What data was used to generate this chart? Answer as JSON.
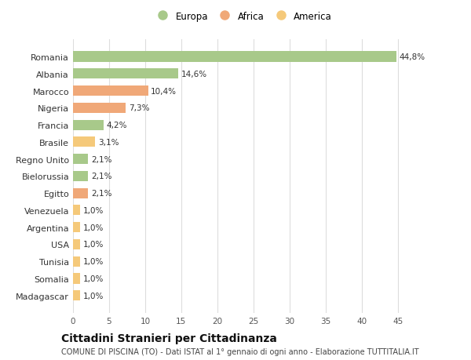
{
  "categories": [
    "Madagascar",
    "Somalia",
    "Tunisia",
    "USA",
    "Argentina",
    "Venezuela",
    "Egitto",
    "Bielorussia",
    "Regno Unito",
    "Brasile",
    "Francia",
    "Nigeria",
    "Marocco",
    "Albania",
    "Romania"
  ],
  "values": [
    1.0,
    1.0,
    1.0,
    1.0,
    1.0,
    1.0,
    2.1,
    2.1,
    2.1,
    3.1,
    4.2,
    7.3,
    10.4,
    14.6,
    44.8
  ],
  "labels": [
    "1,0%",
    "1,0%",
    "1,0%",
    "1,0%",
    "1,0%",
    "1,0%",
    "2,1%",
    "2,1%",
    "2,1%",
    "3,1%",
    "4,2%",
    "7,3%",
    "10,4%",
    "14,6%",
    "44,8%"
  ],
  "colors": [
    "#f5c97a",
    "#f5c97a",
    "#f5c97a",
    "#f5c97a",
    "#f5c97a",
    "#f5c97a",
    "#f0a878",
    "#a8c98a",
    "#a8c98a",
    "#f5c97a",
    "#a8c98a",
    "#f0a878",
    "#f0a878",
    "#a8c98a",
    "#a8c98a"
  ],
  "legend_labels": [
    "Europa",
    "Africa",
    "America"
  ],
  "legend_colors": [
    "#a8c98a",
    "#f0a878",
    "#f5c97a"
  ],
  "title": "Cittadini Stranieri per Cittadinanza",
  "subtitle": "COMUNE DI PISCINA (TO) - Dati ISTAT al 1° gennaio di ogni anno - Elaborazione TUTTITALIA.IT",
  "xlim": [
    0,
    47
  ],
  "xticks": [
    0,
    5,
    10,
    15,
    20,
    25,
    30,
    35,
    40,
    45
  ],
  "background_color": "#ffffff",
  "grid_color": "#dddddd",
  "label_fontsize": 7.5,
  "ytick_fontsize": 8,
  "xtick_fontsize": 7.5,
  "title_fontsize": 10,
  "subtitle_fontsize": 7
}
